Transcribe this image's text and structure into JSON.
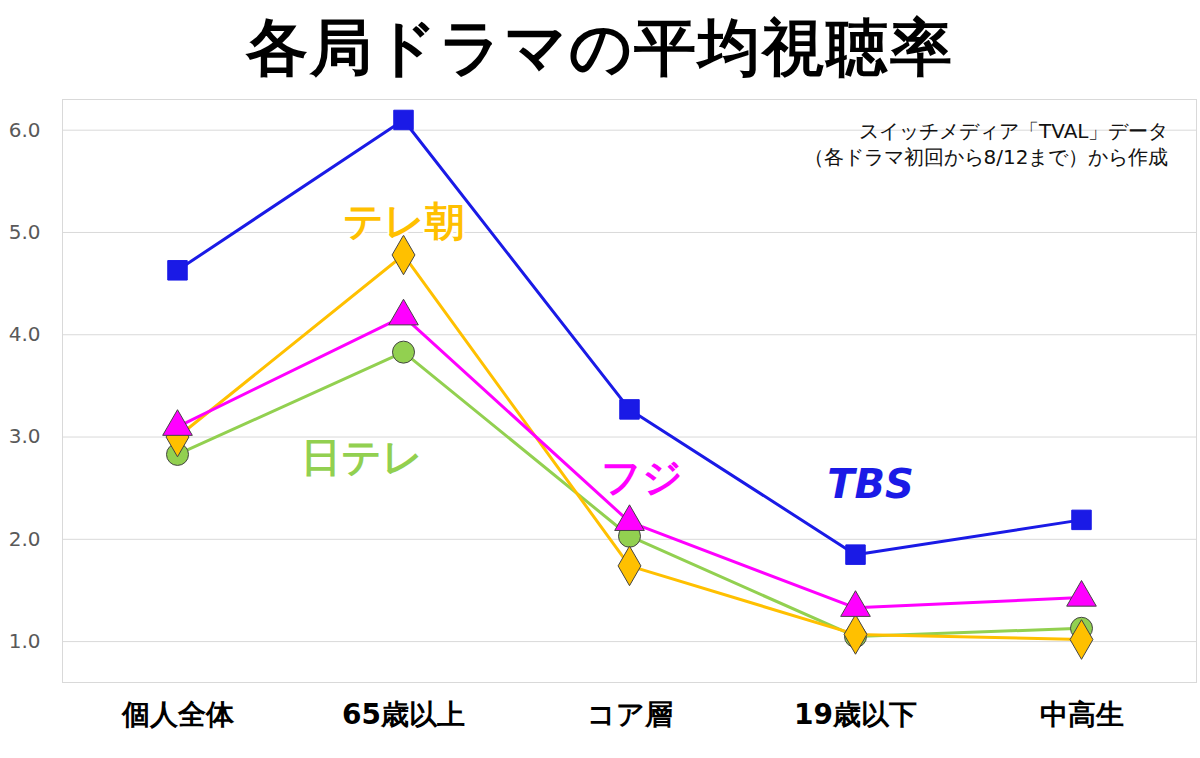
{
  "chart_data": {
    "type": "line",
    "title": "各局ドラマの平均視聴率",
    "subtitle": "スイッチメディア「TVAL」データ\n（各ドラマ初回から8/12まで）から作成",
    "categories": [
      "個人全体",
      "65歳以上",
      "コア層",
      "19歳以下",
      "中高生"
    ],
    "ylim": [
      0.6,
      6.3
    ],
    "yticks": [
      1,
      2,
      3,
      4,
      5,
      6
    ],
    "grid": true,
    "series": [
      {
        "name": "TBS",
        "color": "#1a1ae6",
        "marker": "square",
        "values": [
          4.63,
          6.1,
          3.27,
          1.85,
          2.19
        ]
      },
      {
        "name": "日テレ",
        "color": "#92d050",
        "marker": "circle",
        "values": [
          2.83,
          3.83,
          2.03,
          1.05,
          1.13
        ]
      },
      {
        "name": "テレ朝",
        "color": "#ffc000",
        "marker": "diamond",
        "values": [
          3.0,
          4.78,
          1.74,
          1.07,
          1.02
        ]
      },
      {
        "name": "フジ",
        "color": "#ff00ff",
        "marker": "triangle",
        "values": [
          3.1,
          4.18,
          2.17,
          1.33,
          1.43
        ]
      }
    ]
  }
}
